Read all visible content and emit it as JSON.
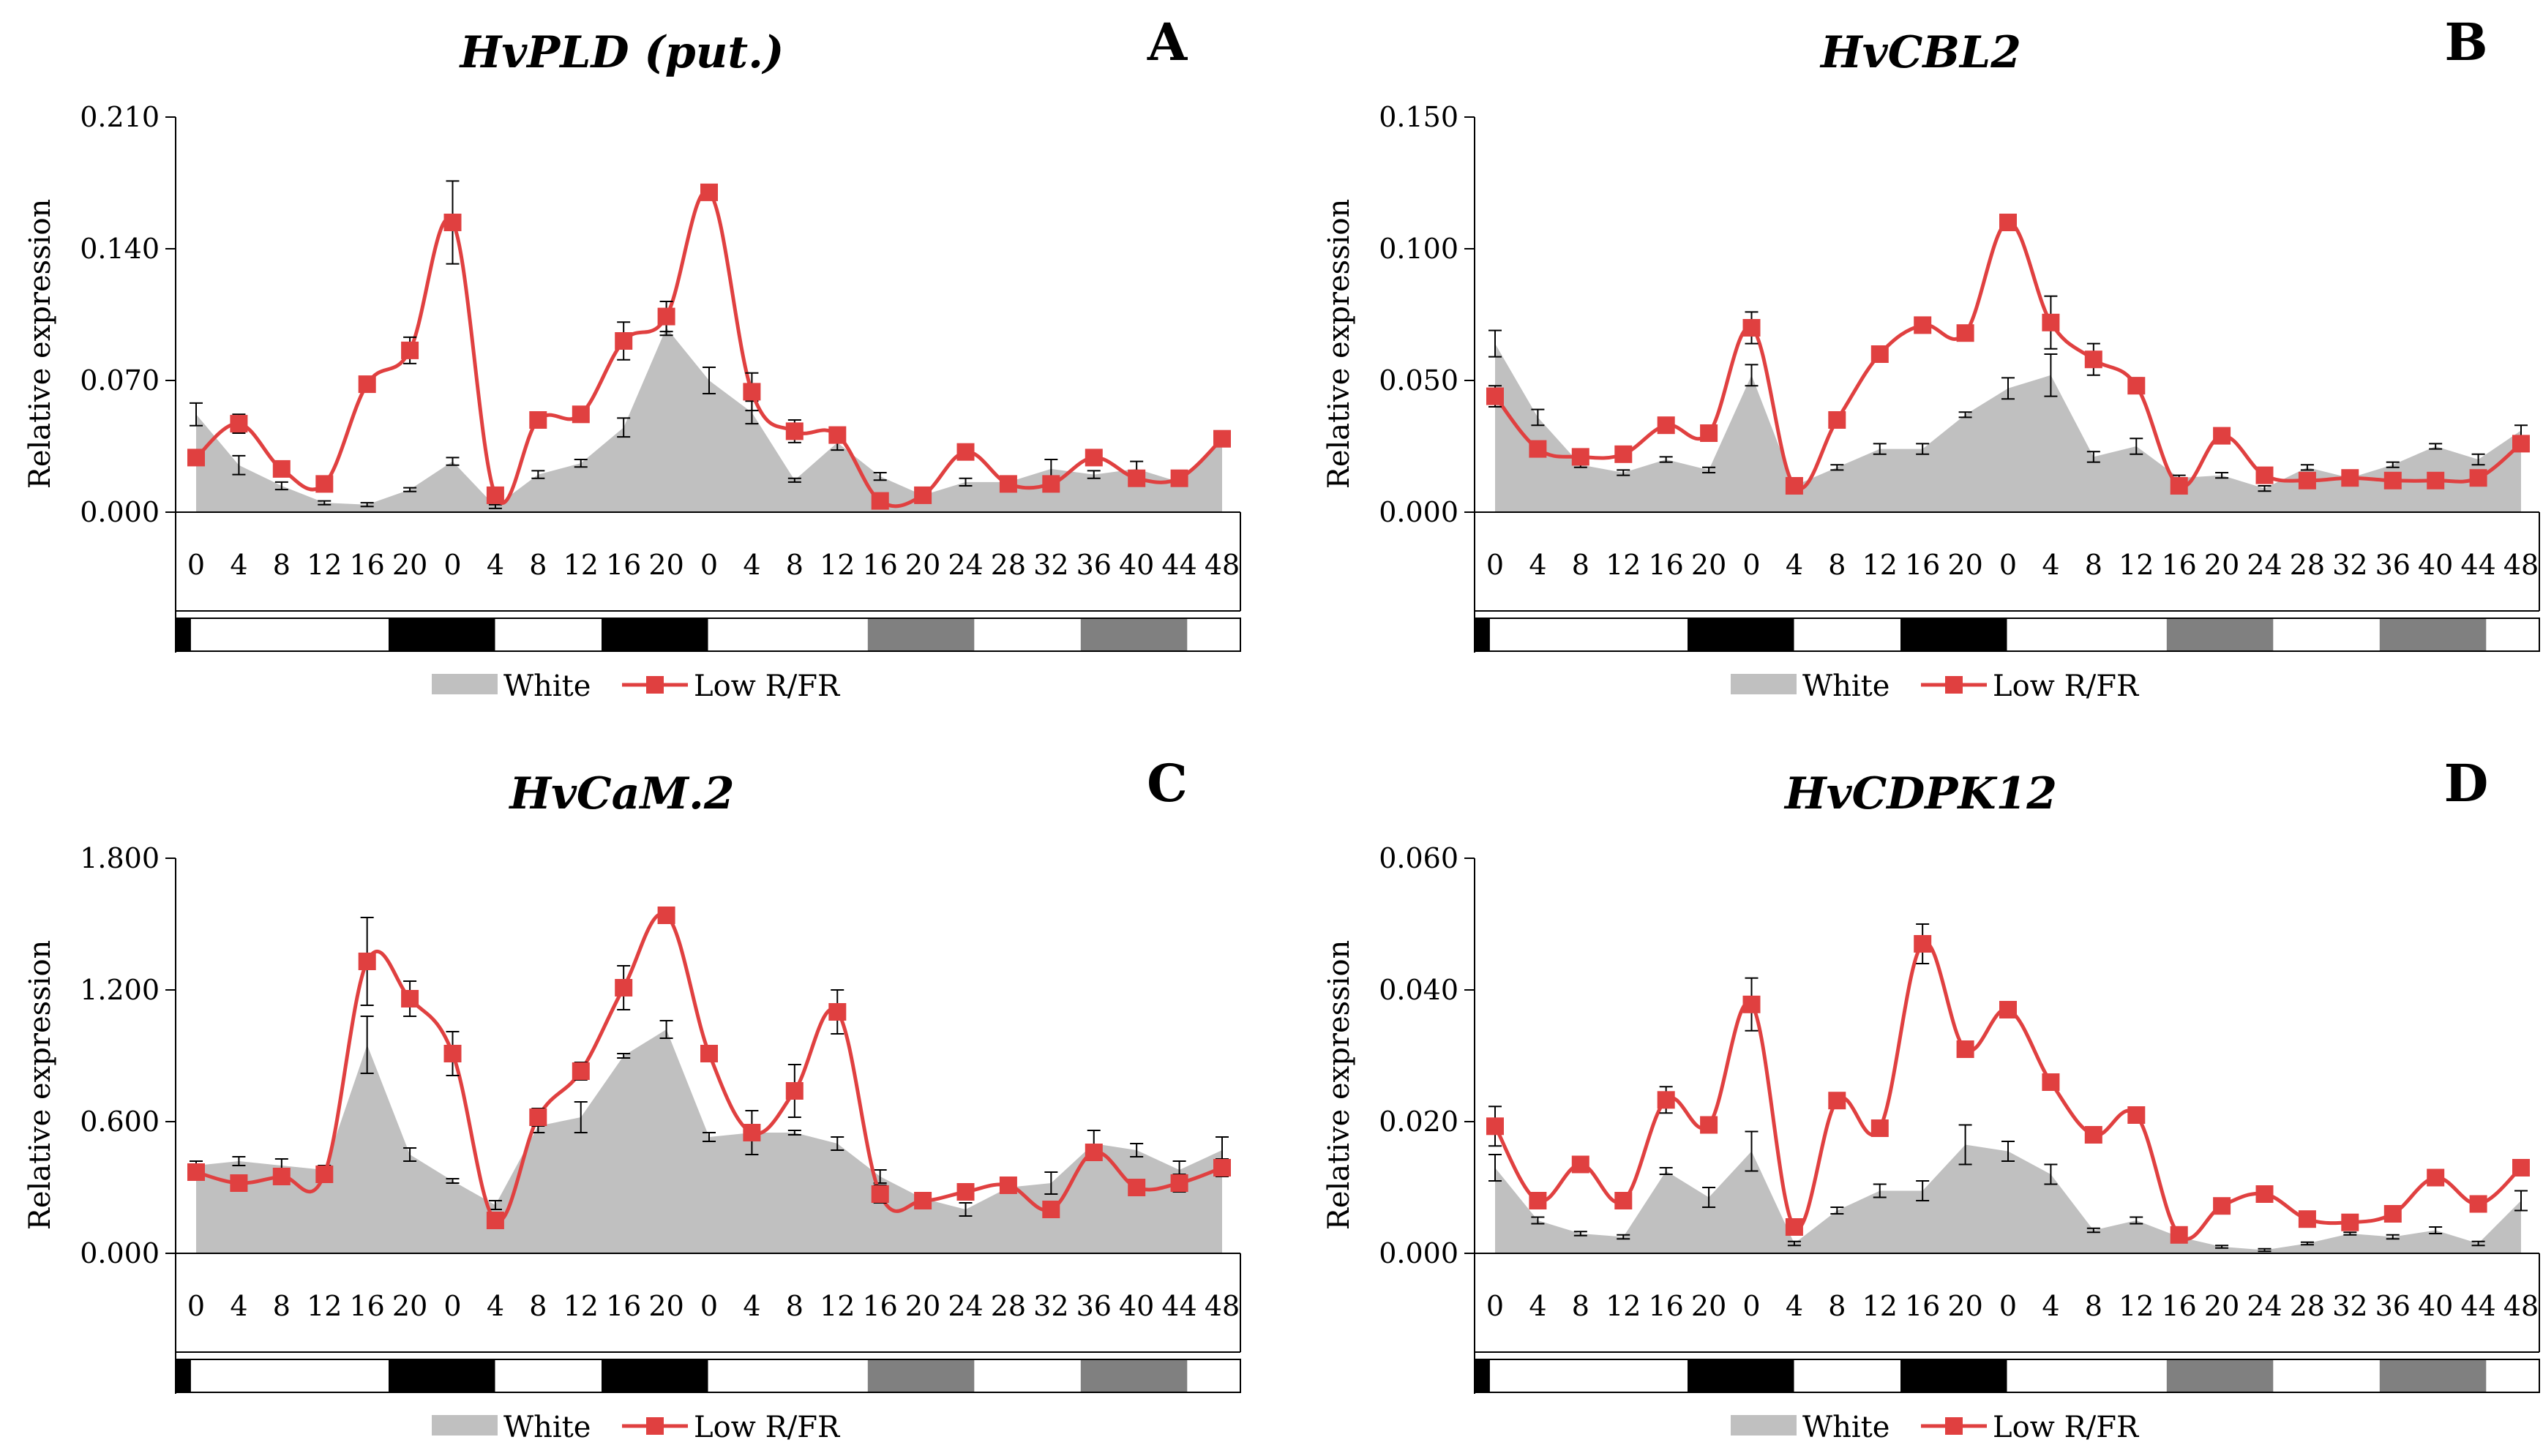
{
  "colors": {
    "white_area": "#c0c0c0",
    "low_rfr": "#e04040",
    "axis": "#000000",
    "dark_bar": "#000000",
    "grey_bar": "#808080"
  },
  "shared": {
    "x_ticks": [
      "0",
      "4",
      "8",
      "12",
      "16",
      "20",
      "0",
      "4",
      "8",
      "12",
      "16",
      "20",
      "0",
      "4",
      "8",
      "12",
      "16",
      "20",
      "24",
      "28",
      "32",
      "36",
      "40",
      "44",
      "48"
    ],
    "light_bar": [
      "black",
      "white",
      "white",
      "white",
      "black",
      "black",
      "white",
      "white",
      "black",
      "black",
      "white",
      "white",
      "white",
      "grey",
      "grey",
      "white",
      "white",
      "grey",
      "grey",
      "white"
    ],
    "ylabel": "Relative expression",
    "legend": {
      "white": "White",
      "low_rfr": "Low R/FR"
    }
  },
  "chart_data": [
    {
      "type": "area+line",
      "title": "HvPLD (put.)",
      "letter": "A",
      "ylim": [
        0,
        0.21
      ],
      "yticks": [
        "0.000",
        "0.070",
        "0.140",
        "0.210"
      ],
      "series": [
        {
          "name": "White",
          "values": [
            0.052,
            0.025,
            0.014,
            0.005,
            0.004,
            0.012,
            0.027,
            0.003,
            0.02,
            0.026,
            0.045,
            0.098,
            0.07,
            0.053,
            0.017,
            0.037,
            0.019,
            0.009,
            0.016,
            0.016,
            0.023,
            0.02,
            0.023,
            0.016,
            0.038
          ],
          "errors": [
            0.006,
            0.005,
            0.002,
            0.001,
            0.001,
            0.001,
            0.002,
            0.001,
            0.002,
            0.002,
            0.005,
            0.004,
            0.007,
            0.006,
            0.001,
            0.004,
            0.002,
            0.001,
            0.002,
            0.001,
            0.005,
            0.002,
            0.004,
            0.002,
            0.002
          ]
        },
        {
          "name": "Low R/FR",
          "values": [
            0.029,
            0.047,
            0.023,
            0.015,
            0.068,
            0.086,
            0.154,
            0.009,
            0.049,
            0.052,
            0.091,
            0.104,
            0.17,
            0.064,
            0.043,
            0.041,
            0.006,
            0.009,
            0.032,
            0.015,
            0.015,
            0.029,
            0.018,
            0.018,
            0.039
          ],
          "errors": [
            0.003,
            0.005,
            0.002,
            0.001,
            0.004,
            0.007,
            0.022,
            0.001,
            0.002,
            0.002,
            0.01,
            0.008,
            0.002,
            0.01,
            0.006,
            0.002,
            0.002,
            0.001,
            0.002,
            0.001,
            0.001,
            0.002,
            0.004,
            0.001,
            0.002
          ]
        }
      ]
    },
    {
      "type": "area+line",
      "title": "HvCBL2",
      "letter": "B",
      "ylim": [
        0,
        0.15
      ],
      "yticks": [
        "0.000",
        "0.050",
        "0.100",
        "0.150"
      ],
      "series": [
        {
          "name": "White",
          "values": [
            0.064,
            0.036,
            0.018,
            0.015,
            0.02,
            0.016,
            0.052,
            0.01,
            0.017,
            0.024,
            0.024,
            0.037,
            0.047,
            0.052,
            0.021,
            0.025,
            0.013,
            0.014,
            0.009,
            0.017,
            0.013,
            0.018,
            0.025,
            0.02,
            0.031
          ],
          "errors": [
            0.005,
            0.003,
            0.001,
            0.001,
            0.001,
            0.001,
            0.004,
            0.001,
            0.001,
            0.002,
            0.002,
            0.001,
            0.004,
            0.008,
            0.002,
            0.003,
            0.001,
            0.001,
            0.001,
            0.001,
            0.001,
            0.001,
            0.001,
            0.002,
            0.002
          ]
        },
        {
          "name": "Low R/FR",
          "values": [
            0.044,
            0.024,
            0.021,
            0.022,
            0.033,
            0.03,
            0.07,
            0.01,
            0.035,
            0.06,
            0.071,
            0.068,
            0.11,
            0.072,
            0.058,
            0.048,
            0.01,
            0.029,
            0.014,
            0.012,
            0.013,
            0.012,
            0.012,
            0.013,
            0.026
          ],
          "errors": [
            0.004,
            0.001,
            0.001,
            0.001,
            0.001,
            0.003,
            0.006,
            0.001,
            0.001,
            0.001,
            0.001,
            0.001,
            0.001,
            0.01,
            0.006,
            0.003,
            0.001,
            0.001,
            0.001,
            0.001,
            0.001,
            0.001,
            0.001,
            0.001,
            0.001
          ]
        }
      ]
    },
    {
      "type": "area+line",
      "title": "HvCaM.2",
      "letter": "C",
      "ylim": [
        0,
        1.8
      ],
      "yticks": [
        "0.000",
        "0.600",
        "1.200",
        "1.800"
      ],
      "series": [
        {
          "name": "White",
          "values": [
            0.4,
            0.42,
            0.4,
            0.38,
            0.95,
            0.45,
            0.33,
            0.22,
            0.58,
            0.62,
            0.9,
            1.02,
            0.53,
            0.55,
            0.55,
            0.5,
            0.35,
            0.25,
            0.2,
            0.3,
            0.32,
            0.5,
            0.47,
            0.38,
            0.47
          ],
          "errors": [
            0.02,
            0.02,
            0.03,
            0.02,
            0.13,
            0.03,
            0.01,
            0.02,
            0.03,
            0.07,
            0.01,
            0.04,
            0.02,
            0.03,
            0.01,
            0.03,
            0.03,
            0.02,
            0.03,
            0.02,
            0.05,
            0.06,
            0.03,
            0.04,
            0.06
          ]
        },
        {
          "name": "Low R/FR",
          "values": [
            0.37,
            0.32,
            0.35,
            0.36,
            1.33,
            1.16,
            0.91,
            0.15,
            0.62,
            0.83,
            1.21,
            1.54,
            0.91,
            0.55,
            0.74,
            1.1,
            0.27,
            0.24,
            0.28,
            0.31,
            0.2,
            0.46,
            0.3,
            0.32,
            0.39
          ],
          "errors": [
            0.01,
            0.01,
            0.01,
            0.02,
            0.2,
            0.08,
            0.1,
            0.02,
            0.04,
            0.04,
            0.1,
            0.01,
            0.01,
            0.1,
            0.12,
            0.1,
            0.04,
            0.01,
            0.01,
            0.01,
            0.01,
            0.01,
            0.01,
            0.04,
            0.04
          ]
        }
      ]
    },
    {
      "type": "area+line",
      "title": "HvCDPK12",
      "letter": "D",
      "ylim": [
        0,
        0.06
      ],
      "yticks": [
        "0.000",
        "0.020",
        "0.040",
        "0.060"
      ],
      "series": [
        {
          "name": "White",
          "values": [
            0.013,
            0.005,
            0.003,
            0.0025,
            0.0125,
            0.0085,
            0.0155,
            0.0015,
            0.0065,
            0.0095,
            0.0095,
            0.0165,
            0.0155,
            0.012,
            0.0035,
            0.005,
            0.0025,
            0.001,
            0.0005,
            0.0015,
            0.003,
            0.0025,
            0.0035,
            0.0015,
            0.008
          ],
          "errors": [
            0.002,
            0.0005,
            0.0003,
            0.0003,
            0.0005,
            0.0015,
            0.003,
            0.0003,
            0.0005,
            0.001,
            0.0015,
            0.003,
            0.0015,
            0.0015,
            0.0003,
            0.0005,
            0.0003,
            0.0002,
            0.0002,
            0.0002,
            0.0002,
            0.0003,
            0.0005,
            0.0003,
            0.0015
          ]
        },
        {
          "name": "Low R/FR",
          "values": [
            0.0193,
            0.008,
            0.0135,
            0.008,
            0.0233,
            0.0195,
            0.0378,
            0.004,
            0.0232,
            0.019,
            0.047,
            0.031,
            0.037,
            0.026,
            0.018,
            0.021,
            0.0028,
            0.0072,
            0.009,
            0.0052,
            0.0047,
            0.006,
            0.0115,
            0.0075,
            0.013
          ],
          "errors": [
            0.003,
            0.0005,
            0.0005,
            0.0005,
            0.002,
            0.001,
            0.004,
            0.0005,
            0.0005,
            0.0005,
            0.003,
            0.0005,
            0.0005,
            0.0005,
            0.001,
            0.0005,
            0.0003,
            0.0003,
            0.0003,
            0.0003,
            0.0003,
            0.0003,
            0.0005,
            0.0003,
            0.0005
          ]
        }
      ]
    }
  ]
}
